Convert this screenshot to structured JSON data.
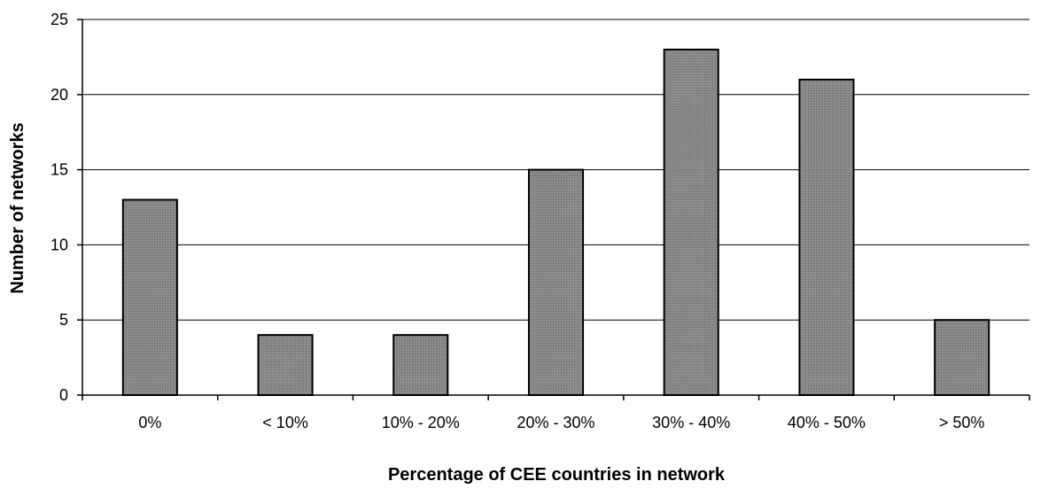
{
  "chart_data": {
    "type": "bar",
    "title": "",
    "xlabel": "Percentage of CEE countries in network",
    "ylabel": "Number of networks",
    "categories": [
      "0%",
      "< 10%",
      "10% - 20%",
      "20% - 30%",
      "30% - 40%",
      "40% - 50%",
      "> 50%"
    ],
    "values": [
      13,
      4,
      4,
      15,
      23,
      21,
      5
    ],
    "ylim": [
      0,
      25
    ],
    "yticks": [
      0,
      5,
      10,
      15,
      20,
      25
    ],
    "grid": true,
    "legend": "none",
    "colors": {
      "bar_fill": "#888888",
      "bar_stroke": "#000000",
      "grid": "#000000"
    }
  }
}
